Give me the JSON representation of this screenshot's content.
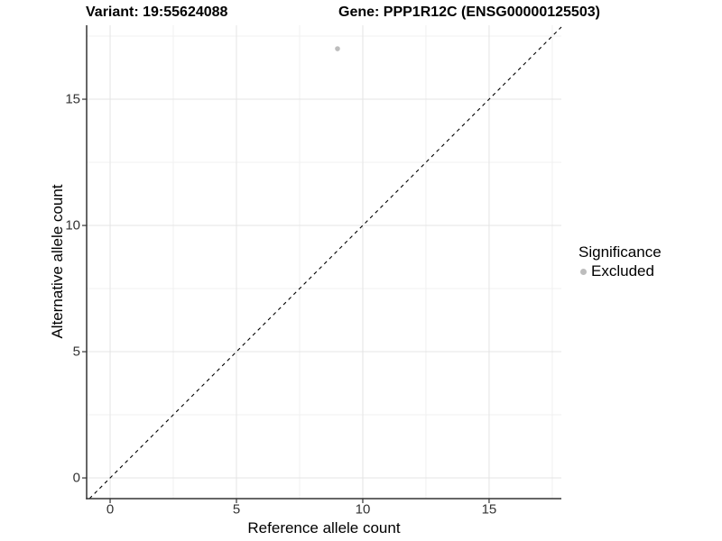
{
  "title": {
    "variant": "Variant: 19:55624088",
    "gene": "Gene: PPP1R12C (ENSG00000125503)"
  },
  "chart_data": {
    "type": "scatter",
    "title": "Variant: 19:55624088   Gene: PPP1R12C (ENSG00000125503)",
    "xlabel": "Reference allele count",
    "ylabel": "Alternative allele count",
    "xlim": [
      -0.93,
      17.86
    ],
    "ylim": [
      -0.82,
      17.93
    ],
    "x_ticks": [
      0,
      5,
      10,
      15
    ],
    "y_ticks": [
      0,
      5,
      10,
      15
    ],
    "x_minor_ticks": [
      2.5,
      7.5,
      12.5,
      17.5
    ],
    "y_minor_ticks": [
      2.5,
      7.5,
      12.5,
      17.5
    ],
    "grid": true,
    "legend_position": "right",
    "points": [
      {
        "x": 9,
        "y": 17,
        "significance": "Excluded"
      }
    ],
    "abline": {
      "slope": 1,
      "intercept": 0,
      "linetype": "dashed"
    },
    "colors": {
      "excluded_point": "#bdbdbd",
      "abline": "#000000",
      "grid_major": "#e4e4e4",
      "grid_minor": "#f0f0f0",
      "axis_line": "#333333",
      "tick_label": "#333333"
    }
  },
  "legend": {
    "title": "Significance",
    "items": [
      {
        "label": "Excluded",
        "color": "#bdbdbd"
      }
    ]
  },
  "axes": {
    "x_label": "Reference allele count",
    "y_label": "Alternative allele count"
  }
}
